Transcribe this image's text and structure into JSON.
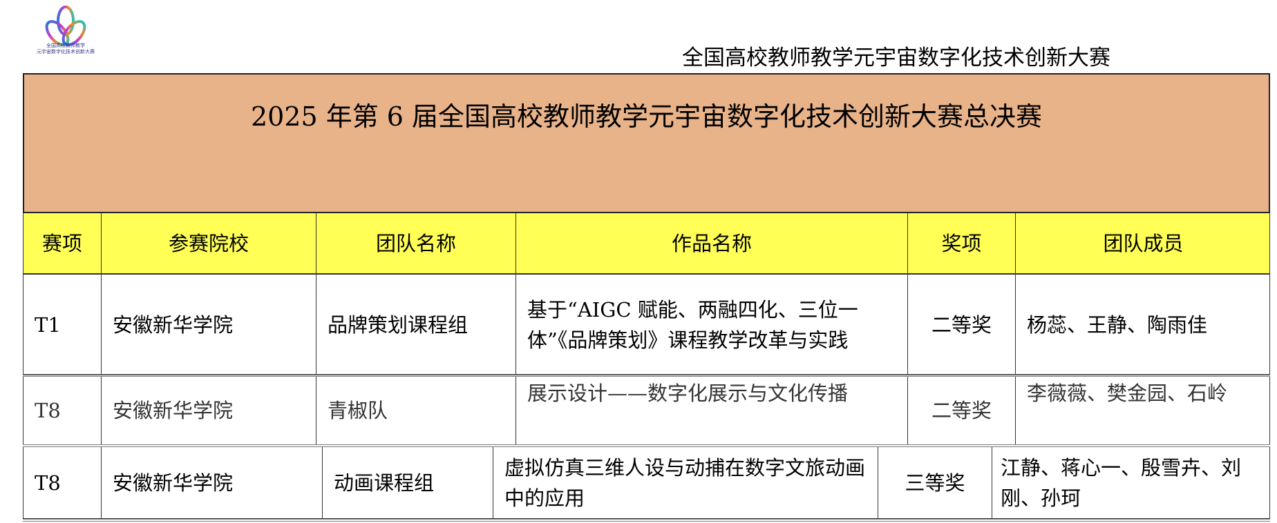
{
  "logo": {
    "text": "全国高校教师教学\n元宇宙数字化技术创新大赛"
  },
  "header": {
    "title": "全国高校教师教学元宇宙数字化技术创新大赛"
  },
  "main_title": "2025 年第 6 届全国高校教师教学元宇宙数字化技术创新大赛总决赛",
  "table": {
    "columns": [
      "赛项",
      "参赛院校",
      "团队名称",
      "作品名称",
      "奖项",
      "团队成员"
    ],
    "rows": [
      [
        "T1",
        "安徽新华学院",
        "品牌策划课程组",
        "基于“AIGC 赋能、两融四化、三位一体”《品牌策划》课程教学改革与实践",
        "二等奖",
        "杨蕊、王静、陶雨佳"
      ],
      [
        "T8",
        "安徽新华学院",
        "青椒队",
        "展示设计——数字化展示与文化传播",
        "二等奖",
        "李薇薇、樊金园、石岭"
      ],
      [
        "T8",
        "安徽新华学院",
        "动画课程组",
        "虚拟仿真三维人设与动捕在数字文旅动画中的应用",
        "三等奖",
        "江静、蒋心一、殷雪卉、刘刚、孙珂"
      ]
    ]
  },
  "colors": {
    "title_band": "#e9b38a",
    "header_row": "#ffff55"
  }
}
